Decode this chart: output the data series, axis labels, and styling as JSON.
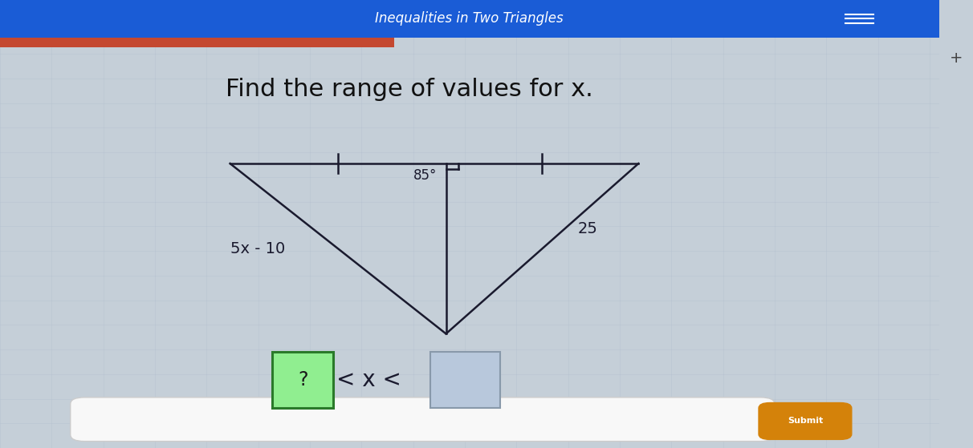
{
  "title": "Inequalities in Two Triangles",
  "question": "Find the range of values for x.",
  "bg_color": "#c5cfd8",
  "title_bg_color": "#1a5cd6",
  "title_text_color": "#ffffff",
  "right_panel_color": "#e8e8e8",
  "triangle_color": "#1a1a2e",
  "angle_label": "85°",
  "left_side_label": "5x - 10",
  "right_side_label": "25",
  "inequality_text": "< x <",
  "green_box_char": "?",
  "green_box_color": "#90ee90",
  "green_box_border": "#2a7a2a",
  "blue_box_color": "#b8c8dc",
  "blue_box_border": "#8899aa",
  "submit_color": "#d4820a",
  "submit_text": "Submit",
  "input_bar_color": "#f8f8f8",
  "red_stripe_color": "#c44830",
  "grid_color": "#aab8c8",
  "scrollbar_color": "#d0d0d0"
}
